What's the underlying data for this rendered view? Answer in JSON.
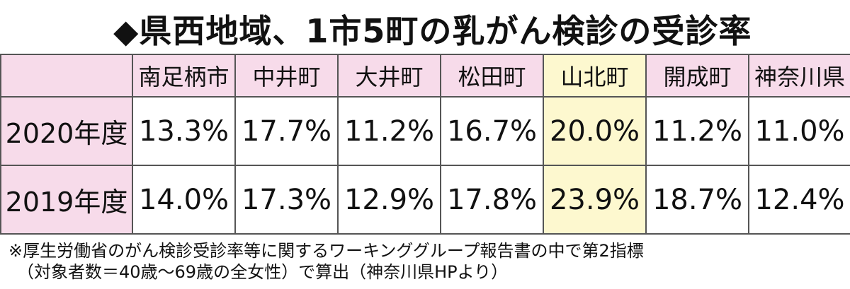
{
  "title": "◆県西地域、1市5町の乳がん検診の受診率",
  "columns": [
    "南足柄市",
    "中井町",
    "大井町",
    "松田町",
    "山北町",
    "開成町",
    "神奈川県"
  ],
  "rows": [
    {
      "year": "2020年度",
      "values": [
        "13.3%",
        "17.7%",
        "11.2%",
        "16.7%",
        "20.0%",
        "11.2%",
        "11.0%"
      ]
    },
    {
      "year": "2019年度",
      "values": [
        "14.0%",
        "17.3%",
        "12.9%",
        "17.8%",
        "23.9%",
        "18.7%",
        "12.4%"
      ]
    }
  ],
  "highlight_column": "山北町",
  "colors": {
    "header_bg": "#f7dbea",
    "highlight_bg": "#fdf8cf",
    "border": "#555555"
  },
  "note": {
    "line1": "※厚生労働省のがん検診受診率等に関するワーキンググループ報告書の中で第2指標",
    "line2": "（対象者数＝40歳〜69歳の全女性）で算出（神奈川県HPより）"
  }
}
